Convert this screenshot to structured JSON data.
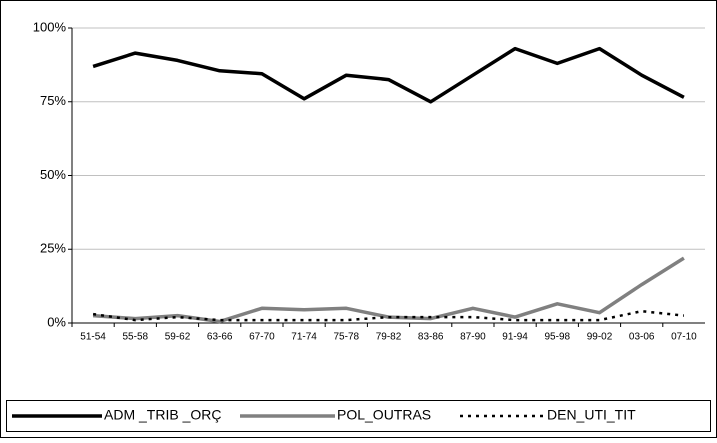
{
  "chart_data": {
    "type": "line",
    "categories": [
      "51-54",
      "55-58",
      "59-62",
      "63-66",
      "67-70",
      "71-74",
      "75-78",
      "79-82",
      "83-86",
      "87-90",
      "91-94",
      "95-98",
      "99-02",
      "03-06",
      "07-10"
    ],
    "series": [
      {
        "name": "ADM _TRIB _ORÇ",
        "color": "#000000",
        "style": "solid",
        "values": [
          87,
          91.5,
          89,
          85.5,
          84.5,
          76,
          84,
          82.5,
          75,
          84,
          93,
          88,
          93,
          84,
          76.5
        ]
      },
      {
        "name": "POL_OUTRAS",
        "color": "#808080",
        "style": "solid",
        "values": [
          2.5,
          1.5,
          2.5,
          0.5,
          5,
          4.5,
          5,
          2,
          1.5,
          5,
          2,
          6.5,
          3.5,
          13,
          22
        ]
      },
      {
        "name": "DEN_UTI_TIT",
        "color": "#000000",
        "style": "dotted",
        "values": [
          3,
          1,
          2,
          1,
          1,
          1,
          1,
          2,
          2,
          2,
          1,
          1,
          1,
          4,
          2.5
        ]
      }
    ],
    "ylim": [
      0,
      100
    ],
    "yticks": [
      {
        "value": 0,
        "label": "0%"
      },
      {
        "value": 25,
        "label": "25%"
      },
      {
        "value": 50,
        "label": "50%"
      },
      {
        "value": 75,
        "label": "75%"
      },
      {
        "value": 100,
        "label": "100%"
      }
    ],
    "grid": true,
    "legend": "bottom"
  }
}
